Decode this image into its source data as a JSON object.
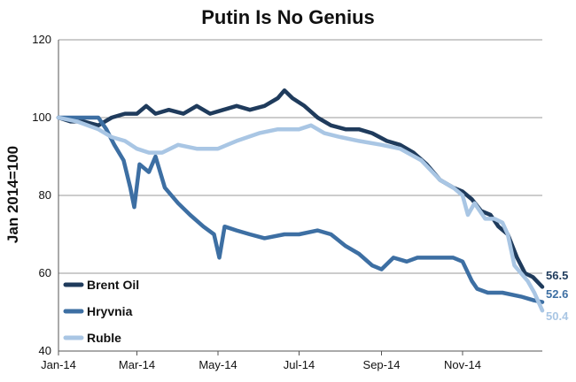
{
  "chart_data": {
    "type": "line",
    "title": "Putin Is No Genius",
    "xlabel": "",
    "ylabel": "Jan 2014=100",
    "ylim": [
      40,
      120
    ],
    "yticks": [
      40,
      60,
      80,
      100,
      120
    ],
    "xlim": [
      "2014-01-01",
      "2014-12-31"
    ],
    "xticks": [
      {
        "date": "2014-01-01",
        "label": "Jan-14"
      },
      {
        "date": "2014-03-01",
        "label": "Mar-14"
      },
      {
        "date": "2014-05-01",
        "label": "May-14"
      },
      {
        "date": "2014-07-01",
        "label": "Jul-14"
      },
      {
        "date": "2014-09-01",
        "label": "Sep-14"
      },
      {
        "date": "2014-11-01",
        "label": "Nov-14"
      }
    ],
    "grid": "horizontal",
    "legend": "bottom-left",
    "series": [
      {
        "name": "Brent Oil",
        "color": "#1f3b5c",
        "end_label": "56.5",
        "points": [
          [
            "2014-01-01",
            100
          ],
          [
            "2014-01-10",
            99
          ],
          [
            "2014-01-20",
            99
          ],
          [
            "2014-01-31",
            98
          ],
          [
            "2014-02-10",
            100
          ],
          [
            "2014-02-20",
            101
          ],
          [
            "2014-03-01",
            101
          ],
          [
            "2014-03-08",
            103
          ],
          [
            "2014-03-15",
            101
          ],
          [
            "2014-03-25",
            102
          ],
          [
            "2014-04-05",
            101
          ],
          [
            "2014-04-15",
            103
          ],
          [
            "2014-04-25",
            101
          ],
          [
            "2014-05-05",
            102
          ],
          [
            "2014-05-15",
            103
          ],
          [
            "2014-05-25",
            102
          ],
          [
            "2014-06-05",
            103
          ],
          [
            "2014-06-15",
            105
          ],
          [
            "2014-06-20",
            107
          ],
          [
            "2014-06-26",
            105
          ],
          [
            "2014-07-05",
            103
          ],
          [
            "2014-07-15",
            100
          ],
          [
            "2014-07-25",
            98
          ],
          [
            "2014-08-05",
            97
          ],
          [
            "2014-08-15",
            97
          ],
          [
            "2014-08-25",
            96
          ],
          [
            "2014-09-05",
            94
          ],
          [
            "2014-09-15",
            93
          ],
          [
            "2014-09-25",
            91
          ],
          [
            "2014-10-05",
            88
          ],
          [
            "2014-10-15",
            84
          ],
          [
            "2014-10-25",
            82
          ],
          [
            "2014-11-01",
            81
          ],
          [
            "2014-11-08",
            79
          ],
          [
            "2014-11-15",
            76
          ],
          [
            "2014-11-22",
            75
          ],
          [
            "2014-11-28",
            72
          ],
          [
            "2014-12-05",
            70
          ],
          [
            "2014-12-12",
            64
          ],
          [
            "2014-12-18",
            60
          ],
          [
            "2014-12-24",
            59
          ],
          [
            "2014-12-31",
            56.5
          ]
        ]
      },
      {
        "name": "Hryvnia",
        "color": "#3d6fa3",
        "end_label": "52.6",
        "points": [
          [
            "2014-01-01",
            100
          ],
          [
            "2014-01-15",
            100
          ],
          [
            "2014-01-31",
            100
          ],
          [
            "2014-02-06",
            97
          ],
          [
            "2014-02-12",
            93
          ],
          [
            "2014-02-19",
            89
          ],
          [
            "2014-02-24",
            82
          ],
          [
            "2014-02-27",
            77
          ],
          [
            "2014-03-03",
            88
          ],
          [
            "2014-03-10",
            86
          ],
          [
            "2014-03-15",
            90
          ],
          [
            "2014-03-22",
            82
          ],
          [
            "2014-04-01",
            78
          ],
          [
            "2014-04-10",
            75
          ],
          [
            "2014-04-20",
            72
          ],
          [
            "2014-04-28",
            70
          ],
          [
            "2014-05-02",
            64
          ],
          [
            "2014-05-06",
            72
          ],
          [
            "2014-05-15",
            71
          ],
          [
            "2014-05-25",
            70
          ],
          [
            "2014-06-05",
            69
          ],
          [
            "2014-06-20",
            70
          ],
          [
            "2014-07-01",
            70
          ],
          [
            "2014-07-15",
            71
          ],
          [
            "2014-07-25",
            70
          ],
          [
            "2014-08-05",
            67
          ],
          [
            "2014-08-15",
            65
          ],
          [
            "2014-08-25",
            62
          ],
          [
            "2014-09-01",
            61
          ],
          [
            "2014-09-10",
            64
          ],
          [
            "2014-09-20",
            63
          ],
          [
            "2014-09-28",
            64
          ],
          [
            "2014-10-10",
            64
          ],
          [
            "2014-10-25",
            64
          ],
          [
            "2014-11-01",
            63
          ],
          [
            "2014-11-08",
            58
          ],
          [
            "2014-11-12",
            56
          ],
          [
            "2014-11-20",
            55
          ],
          [
            "2014-12-01",
            55
          ],
          [
            "2014-12-15",
            54
          ],
          [
            "2014-12-25",
            53
          ],
          [
            "2014-12-31",
            52.6
          ]
        ]
      },
      {
        "name": "Ruble",
        "color": "#a9c6e4",
        "end_label": "50.4",
        "points": [
          [
            "2014-01-01",
            100
          ],
          [
            "2014-01-15",
            99
          ],
          [
            "2014-01-31",
            97
          ],
          [
            "2014-02-10",
            95
          ],
          [
            "2014-02-20",
            94
          ],
          [
            "2014-03-01",
            92
          ],
          [
            "2014-03-10",
            91
          ],
          [
            "2014-03-20",
            91
          ],
          [
            "2014-04-01",
            93
          ],
          [
            "2014-04-15",
            92
          ],
          [
            "2014-05-01",
            92
          ],
          [
            "2014-05-15",
            94
          ],
          [
            "2014-06-01",
            96
          ],
          [
            "2014-06-15",
            97
          ],
          [
            "2014-07-01",
            97
          ],
          [
            "2014-07-10",
            98
          ],
          [
            "2014-07-20",
            96
          ],
          [
            "2014-08-01",
            95
          ],
          [
            "2014-08-15",
            94
          ],
          [
            "2014-09-01",
            93
          ],
          [
            "2014-09-15",
            92
          ],
          [
            "2014-10-01",
            89
          ],
          [
            "2014-10-15",
            84
          ],
          [
            "2014-10-25",
            82
          ],
          [
            "2014-11-01",
            80
          ],
          [
            "2014-11-05",
            75
          ],
          [
            "2014-11-10",
            78
          ],
          [
            "2014-11-18",
            74
          ],
          [
            "2014-11-25",
            74
          ],
          [
            "2014-12-01",
            73
          ],
          [
            "2014-12-05",
            70
          ],
          [
            "2014-12-10",
            62
          ],
          [
            "2014-12-15",
            60
          ],
          [
            "2014-12-20",
            58
          ],
          [
            "2014-12-25",
            55
          ],
          [
            "2014-12-31",
            50.4
          ]
        ]
      }
    ]
  }
}
